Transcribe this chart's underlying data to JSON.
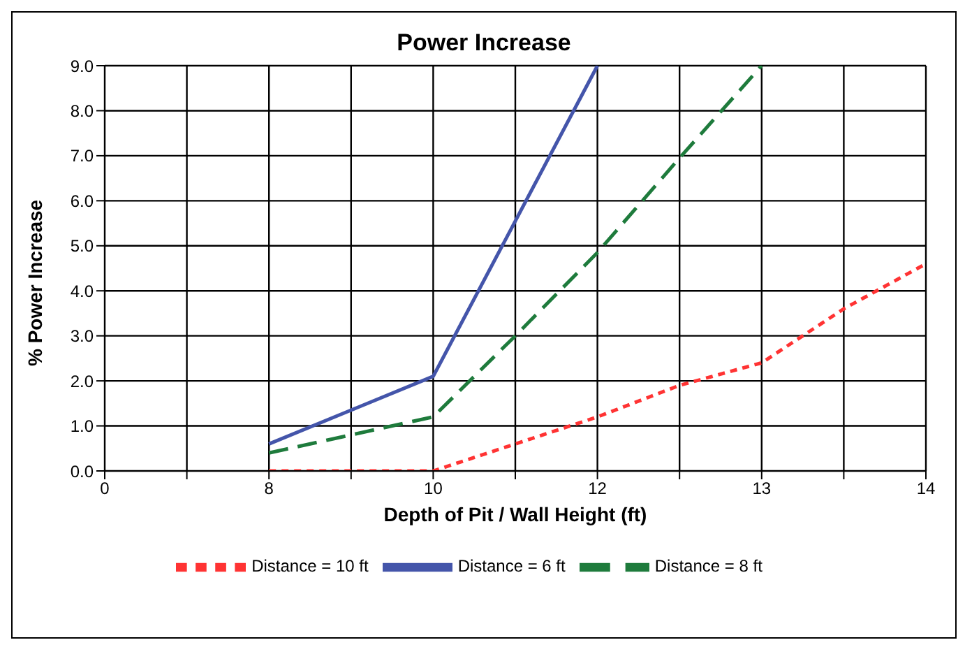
{
  "chart_data": {
    "type": "line",
    "title": "Power Increase",
    "xlabel": "Depth of Pit / Wall Height (ft)",
    "ylabel": "% Power Increase",
    "categories": [
      "0",
      null,
      "8",
      null,
      "10",
      null,
      "12",
      null,
      "13",
      null,
      "14"
    ],
    "series": [
      {
        "name": "Distance = 6 ft",
        "color": "#4455aa",
        "line_style": "solid",
        "values": [
          null,
          null,
          0.6,
          1.35,
          2.1,
          5.55,
          9.0,
          null,
          null,
          null,
          null
        ]
      },
      {
        "name": "Distance = 8 ft",
        "color": "#1e7b3c",
        "line_style": "dashed",
        "values": [
          null,
          null,
          0.4,
          0.8,
          1.2,
          3.0,
          4.85,
          6.95,
          9.0,
          null,
          null
        ]
      },
      {
        "name": "Distance = 10 ft",
        "color": "#ff3333",
        "line_style": "dotted",
        "values": [
          null,
          null,
          0.0,
          0.0,
          0.0,
          0.6,
          1.2,
          1.9,
          2.4,
          3.6,
          4.6
        ]
      }
    ],
    "ylim": [
      0,
      9
    ],
    "yticks": [
      {
        "value": 0,
        "label": "0.0"
      },
      {
        "value": 1,
        "label": "1.0"
      },
      {
        "value": 2,
        "label": "2.0"
      },
      {
        "value": 3,
        "label": "3.0"
      },
      {
        "value": 4,
        "label": "4.0"
      },
      {
        "value": 5,
        "label": "5.0"
      },
      {
        "value": 6,
        "label": "6.0"
      },
      {
        "value": 7,
        "label": "7.0"
      },
      {
        "value": 8,
        "label": "8.0"
      },
      {
        "value": 9,
        "label": "9.0"
      }
    ],
    "grid": true,
    "legend": "bottom",
    "marker": "none"
  }
}
